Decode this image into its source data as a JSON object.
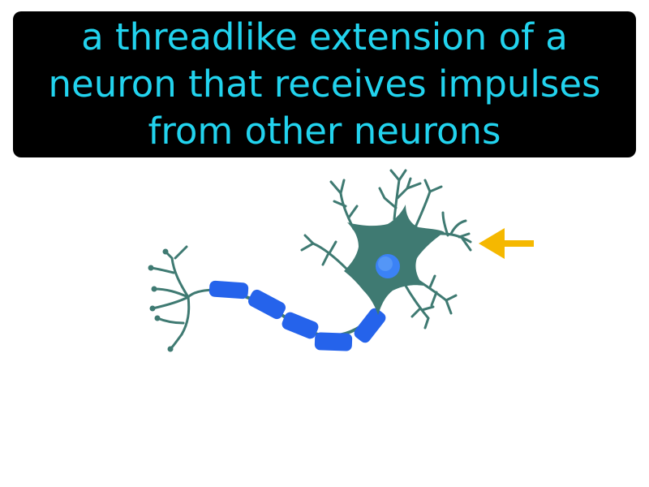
{
  "definition": {
    "text": "a threadlike extension of a neuron that receives impulses from other neurons"
  },
  "colors": {
    "caption_background": "#000000",
    "caption_text": "#22d3ee",
    "neuron_body": "#3f7a72",
    "myelin_sheath": "#2563eb",
    "nucleus": "#3b82f6",
    "arrow": "#f5b800"
  },
  "diagram": {
    "subject": "neuron",
    "highlighted_part": "dendrite",
    "pointer_icon": "arrow-left-icon"
  }
}
